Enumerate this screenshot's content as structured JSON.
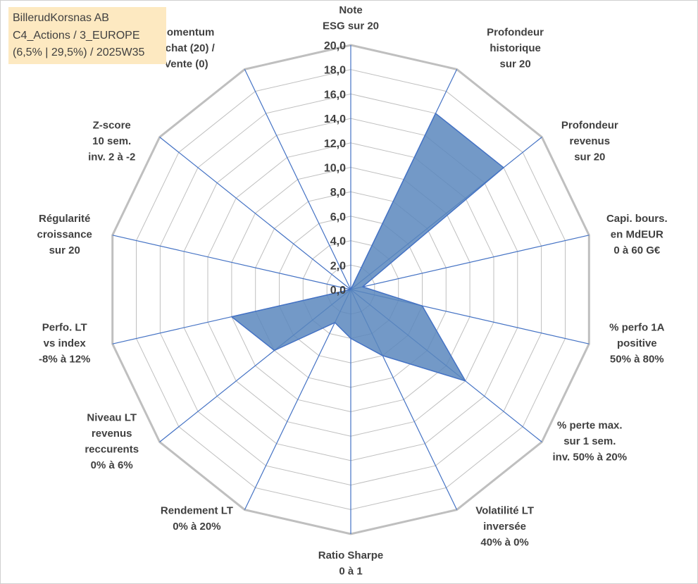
{
  "info_box": {
    "line1": "BillerudKorsnas AB",
    "line2": "C4_Actions / 3_EUROPE",
    "line3": "(6,5% | 29,5%) / 2025W35"
  },
  "colors": {
    "grid": "#bfbfbf",
    "axis": "#4472c4",
    "fill": "#5b87bd",
    "fill_stroke": "#4472c4",
    "label": "#404040",
    "info_bg": "#fde9c1"
  },
  "chart_data": {
    "type": "radar",
    "rmin": 0,
    "rmax": 20,
    "tick_step": 2,
    "tick_labels": [
      "0,0",
      "2,0",
      "4,0",
      "6,0",
      "8,0",
      "10,0",
      "12,0",
      "14,0",
      "16,0",
      "18,0",
      "20,0"
    ],
    "axes": [
      [
        "Note",
        "ESG sur 20"
      ],
      [
        "Profondeur",
        "historique",
        "sur 20"
      ],
      [
        "Profondeur",
        "revenus",
        "sur 20"
      ],
      [
        "Capi. bours.",
        "en MdEUR",
        "0 à 60 G€"
      ],
      [
        "% perfo 1A",
        "positive",
        "50% à 80%"
      ],
      [
        "% perte max.",
        "sur 1 sem.",
        "inv. 50% à 20%"
      ],
      [
        "Volatilité LT",
        "inversée",
        "40% à 0%"
      ],
      [
        "Ratio Sharpe",
        "0 à 1"
      ],
      [
        "Rendement LT",
        "0% à 20%"
      ],
      [
        "Niveau LT",
        "revenus",
        "reccurents",
        "0% à 6%"
      ],
      [
        "Perfo. LT",
        "vs index",
        "-8% à 12%"
      ],
      [
        "Régularité",
        "croissance",
        "sur 20"
      ],
      [
        "Z-score",
        "10 sem.",
        "inv. 2 à -2"
      ],
      [
        "Momentum",
        "Achat (20) /",
        "Vente (0)"
      ]
    ],
    "series": [
      {
        "values": [
          0,
          16,
          16,
          1,
          6,
          12,
          6,
          4,
          3,
          8,
          10,
          0,
          0,
          0
        ]
      }
    ]
  }
}
